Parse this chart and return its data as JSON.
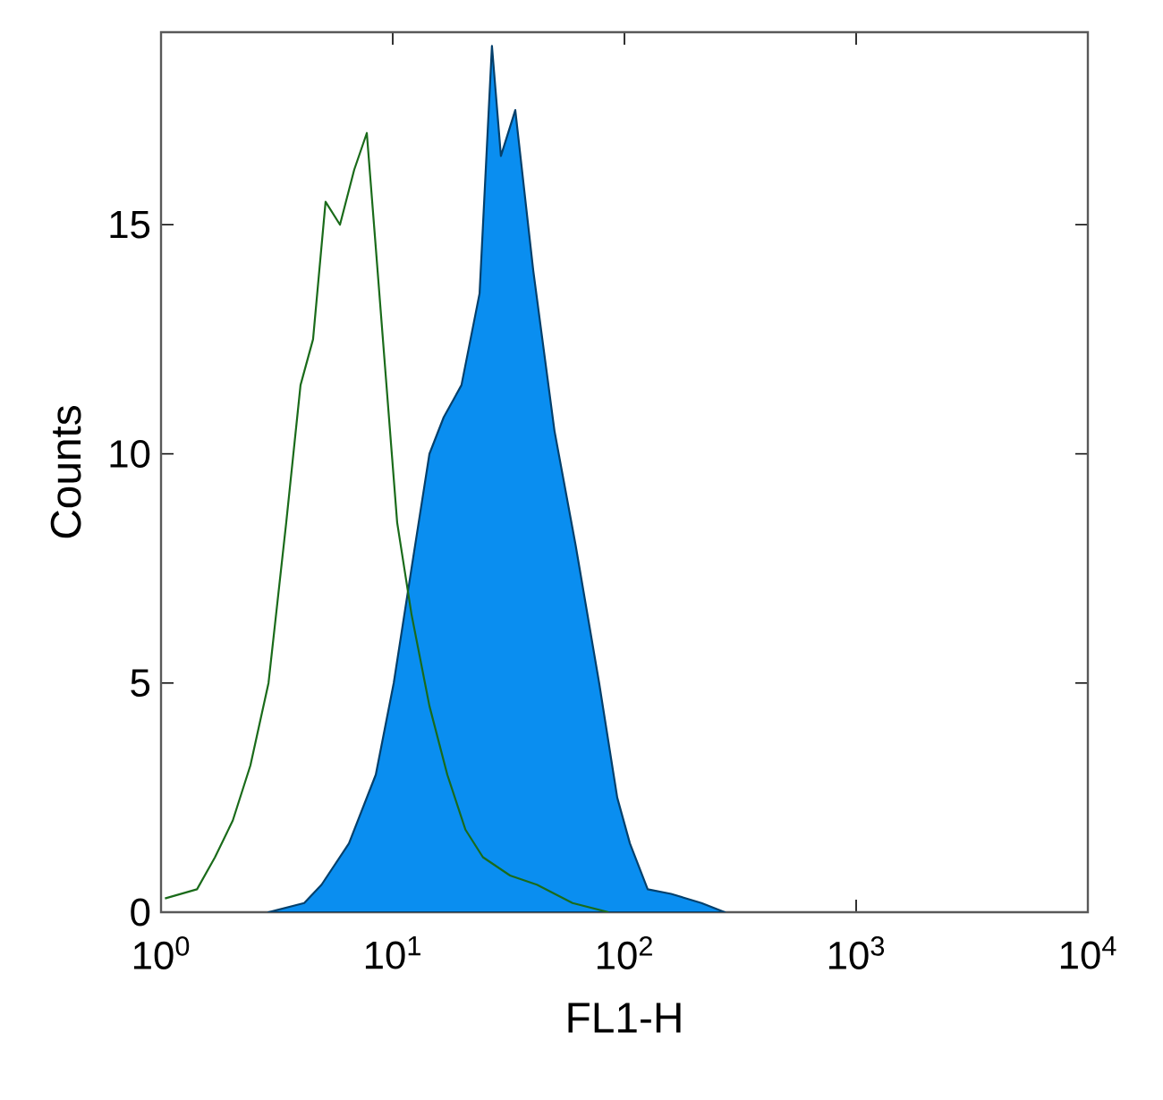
{
  "chart_data": {
    "type": "line",
    "xlabel": "FL1-H",
    "ylabel": "Counts",
    "log": "x",
    "grid": false,
    "marker": "none",
    "xlim": [
      1,
      10000
    ],
    "xticks": [
      {
        "value": 1,
        "label": "10$^{0}$"
      },
      {
        "value": 10,
        "label": "10$^{1}$"
      },
      {
        "value": 100,
        "label": "10$^{2}$"
      },
      {
        "value": 1000,
        "label": "10$^{3}$"
      },
      {
        "value": 10000,
        "label": "10$^{4}$"
      }
    ],
    "ylim": [
      0,
      19.2
    ],
    "yticks": [
      0,
      5,
      10,
      15
    ],
    "series": [
      {
        "type": "area",
        "color": "#0a8ef0",
        "x": [
          2.91,
          4.15,
          4.93,
          6.47,
          8.45,
          10.1,
          12.05,
          14.4,
          16.6,
          19.8,
          23.7,
          26.8,
          29.3,
          33.8,
          40.4,
          49.9,
          61.6,
          77.8,
          93.1,
          105.6,
          126,
          159,
          215,
          271
        ],
        "values": [
          0,
          0.2,
          0.6,
          1.5,
          3.0,
          5.0,
          7.5,
          10.0,
          10.8,
          11.5,
          13.5,
          18.9,
          16.5,
          17.5,
          14.0,
          10.5,
          8.0,
          5.0,
          2.5,
          1.5,
          0.5,
          0.4,
          0.2,
          0
        ]
      },
      {
        "color": "#1a6b1a",
        "x": [
          1.04,
          1.43,
          1.71,
          2.04,
          2.43,
          2.91,
          3.47,
          4.0,
          4.53,
          5.13,
          5.92,
          6.82,
          7.73,
          8.45,
          9.23,
          10.45,
          12.05,
          14.4,
          17.2,
          20.6,
          24.5,
          32.1,
          41.9,
          59.7,
          85.3
        ],
        "values": [
          0.3,
          0.5,
          1.2,
          2.0,
          3.2,
          5.0,
          8.5,
          11.5,
          12.5,
          15.5,
          15.0,
          16.2,
          17.0,
          14.5,
          12.0,
          8.5,
          6.5,
          4.5,
          3.0,
          1.8,
          1.2,
          0.8,
          0.6,
          0.2,
          0
        ]
      }
    ]
  }
}
